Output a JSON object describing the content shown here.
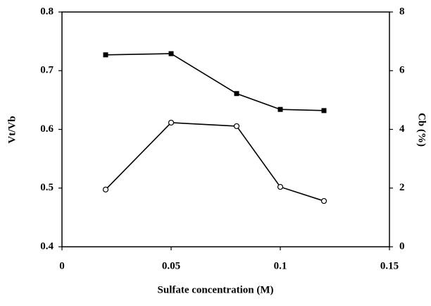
{
  "chart_data": {
    "type": "line",
    "x_label": "Sulfate concentration (M)",
    "y_label": "Vt/Vb",
    "y2_label": "Cb (%)",
    "x": [
      0.02,
      0.05,
      0.08,
      0.1,
      0.12
    ],
    "xlim": [
      0,
      0.15
    ],
    "xticks": [
      0,
      0.05,
      0.1,
      0.15
    ],
    "ylim": [
      0.4,
      0.8
    ],
    "yticks": [
      0.4,
      0.5,
      0.6,
      0.7,
      0.8
    ],
    "y2lim": [
      0,
      8
    ],
    "y2ticks": [
      0,
      2,
      4,
      6,
      8
    ],
    "grid": false,
    "series": [
      {
        "color": "#000000",
        "marker": "square",
        "values": [
          0.727,
          0.729,
          0.661,
          0.634,
          0.632
        ]
      },
      {
        "color": "#000000",
        "marker": "circle",
        "axis": "y2",
        "values": [
          1.95,
          4.23,
          4.11,
          2.04,
          1.56
        ]
      }
    ]
  }
}
